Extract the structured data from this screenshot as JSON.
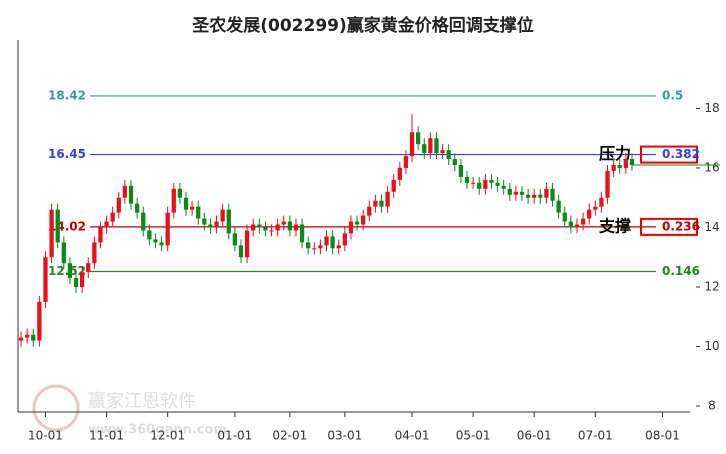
{
  "chart_data": {
    "type": "candlestick",
    "title": "圣农发展(002299)赢家黄金价格回调支撑位",
    "watermark": [
      "赢家江恩软件",
      "www.360gann.com"
    ],
    "up_color": "#e8101a",
    "down_color": "#0a8a1a",
    "ylim": [
      7.8,
      20.3
    ],
    "yticks": [
      8,
      10,
      12,
      14,
      16,
      18
    ],
    "categories": [
      null,
      null,
      null,
      null,
      "10-01",
      null,
      null,
      null,
      null,
      null,
      null,
      null,
      null,
      null,
      "11-01",
      null,
      null,
      null,
      null,
      null,
      null,
      null,
      null,
      null,
      "12-01",
      null,
      null,
      null,
      null,
      null,
      null,
      null,
      null,
      null,
      null,
      "01-01",
      null,
      null,
      null,
      null,
      null,
      null,
      null,
      null,
      "02-01",
      null,
      null,
      null,
      null,
      null,
      null,
      null,
      null,
      "03-01",
      null,
      null,
      null,
      null,
      null,
      null,
      null,
      null,
      null,
      null,
      "04-01",
      null,
      null,
      null,
      null,
      null,
      null,
      null,
      null,
      null,
      "05-01",
      null,
      null,
      null,
      null,
      null,
      null,
      null,
      null,
      null,
      "06-01",
      null,
      null,
      null,
      null,
      null,
      null,
      null,
      null,
      null,
      "07-01",
      null,
      null,
      null,
      null,
      null,
      null,
      null,
      null,
      null,
      null,
      "08-01",
      null,
      null,
      null,
      null
    ],
    "ohlc_order": [
      "open",
      "close",
      "high",
      "low"
    ],
    "candles": [
      [
        10.2,
        10.3,
        10.5,
        10.0
      ],
      [
        10.3,
        10.4,
        10.6,
        10.1
      ],
      [
        10.4,
        10.2,
        10.6,
        10.0
      ],
      [
        10.2,
        11.5,
        11.7,
        10.0
      ],
      [
        11.5,
        13.0,
        13.2,
        11.3
      ],
      [
        13.0,
        14.6,
        14.8,
        12.8
      ],
      [
        14.6,
        13.5,
        14.8,
        13.3
      ],
      [
        13.5,
        12.8,
        13.7,
        12.6
      ],
      [
        12.8,
        12.3,
        13.0,
        12.1
      ],
      [
        12.3,
        12.0,
        12.5,
        11.8
      ],
      [
        12.0,
        12.5,
        12.7,
        11.8
      ],
      [
        12.5,
        12.8,
        13.0,
        12.3
      ],
      [
        12.8,
        13.5,
        13.7,
        12.6
      ],
      [
        13.5,
        14.0,
        14.2,
        13.3
      ],
      [
        14.0,
        14.2,
        14.4,
        13.8
      ],
      [
        14.2,
        14.5,
        14.7,
        14.0
      ],
      [
        14.5,
        15.0,
        15.2,
        14.3
      ],
      [
        15.0,
        15.4,
        15.6,
        14.8
      ],
      [
        15.4,
        14.8,
        15.6,
        14.6
      ],
      [
        14.8,
        14.5,
        15.0,
        14.3
      ],
      [
        14.5,
        13.9,
        14.7,
        13.7
      ],
      [
        13.9,
        13.6,
        14.1,
        13.4
      ],
      [
        13.6,
        13.5,
        13.8,
        13.3
      ],
      [
        13.5,
        13.4,
        13.7,
        13.2
      ],
      [
        13.4,
        14.5,
        14.7,
        13.2
      ],
      [
        14.5,
        15.3,
        15.5,
        14.3
      ],
      [
        15.3,
        15.0,
        15.5,
        14.8
      ],
      [
        15.0,
        14.6,
        15.2,
        14.4
      ],
      [
        14.6,
        14.7,
        14.9,
        14.4
      ],
      [
        14.7,
        14.3,
        14.9,
        14.1
      ],
      [
        14.3,
        14.1,
        14.5,
        13.9
      ],
      [
        14.1,
        14.0,
        14.3,
        13.8
      ],
      [
        14.0,
        14.2,
        14.4,
        13.8
      ],
      [
        14.2,
        14.6,
        14.8,
        14.0
      ],
      [
        14.6,
        13.8,
        14.8,
        13.6
      ],
      [
        13.8,
        13.4,
        14.0,
        13.2
      ],
      [
        13.4,
        13.0,
        13.6,
        12.8
      ],
      [
        13.0,
        13.9,
        14.1,
        12.8
      ],
      [
        13.9,
        14.1,
        14.3,
        13.7
      ],
      [
        14.1,
        14.0,
        14.3,
        13.8
      ],
      [
        14.0,
        13.9,
        14.2,
        13.7
      ],
      [
        13.9,
        13.9,
        14.1,
        13.7
      ],
      [
        13.9,
        14.1,
        14.3,
        13.7
      ],
      [
        14.1,
        14.2,
        14.4,
        13.9
      ],
      [
        14.2,
        13.9,
        14.4,
        13.7
      ],
      [
        13.9,
        14.1,
        14.3,
        13.7
      ],
      [
        14.1,
        13.5,
        14.3,
        13.3
      ],
      [
        13.5,
        13.3,
        13.7,
        13.1
      ],
      [
        13.3,
        13.3,
        13.5,
        13.1
      ],
      [
        13.3,
        13.4,
        13.6,
        13.1
      ],
      [
        13.4,
        13.7,
        13.9,
        13.2
      ],
      [
        13.7,
        13.3,
        13.9,
        13.1
      ],
      [
        13.3,
        13.4,
        13.6,
        13.1
      ],
      [
        13.4,
        13.8,
        14.0,
        13.2
      ],
      [
        13.8,
        14.2,
        14.4,
        13.6
      ],
      [
        14.2,
        14.1,
        14.4,
        13.9
      ],
      [
        14.1,
        14.4,
        14.6,
        13.9
      ],
      [
        14.4,
        14.7,
        14.9,
        14.2
      ],
      [
        14.7,
        14.9,
        15.1,
        14.5
      ],
      [
        14.9,
        14.7,
        15.1,
        14.5
      ],
      [
        14.7,
        15.2,
        15.4,
        14.5
      ],
      [
        15.2,
        15.6,
        15.8,
        15.0
      ],
      [
        15.6,
        16.0,
        16.2,
        15.4
      ],
      [
        16.0,
        16.4,
        16.6,
        15.8
      ],
      [
        16.4,
        17.2,
        17.8,
        16.2
      ],
      [
        17.2,
        16.8,
        17.4,
        16.6
      ],
      [
        16.8,
        16.5,
        17.0,
        16.3
      ],
      [
        16.5,
        17.0,
        17.2,
        16.3
      ],
      [
        17.0,
        16.5,
        17.2,
        16.3
      ],
      [
        16.5,
        16.6,
        16.8,
        16.3
      ],
      [
        16.6,
        16.3,
        16.8,
        16.1
      ],
      [
        16.3,
        16.1,
        16.5,
        15.9
      ],
      [
        16.1,
        15.7,
        16.3,
        15.5
      ],
      [
        15.7,
        15.5,
        15.9,
        15.3
      ],
      [
        15.5,
        15.5,
        15.7,
        15.3
      ],
      [
        15.5,
        15.3,
        15.7,
        15.1
      ],
      [
        15.3,
        15.6,
        15.8,
        15.1
      ],
      [
        15.6,
        15.5,
        15.8,
        15.3
      ],
      [
        15.5,
        15.4,
        15.7,
        15.2
      ],
      [
        15.4,
        15.3,
        15.6,
        15.1
      ],
      [
        15.3,
        15.1,
        15.5,
        14.9
      ],
      [
        15.1,
        15.2,
        15.4,
        14.9
      ],
      [
        15.2,
        15.1,
        15.4,
        14.9
      ],
      [
        15.1,
        15.0,
        15.3,
        14.8
      ],
      [
        15.0,
        15.1,
        15.3,
        14.8
      ],
      [
        15.1,
        15.0,
        15.3,
        14.8
      ],
      [
        15.0,
        15.3,
        15.5,
        14.8
      ],
      [
        15.3,
        14.9,
        15.5,
        14.7
      ],
      [
        14.9,
        14.5,
        15.1,
        14.3
      ],
      [
        14.5,
        14.2,
        14.7,
        14.0
      ],
      [
        14.2,
        14.0,
        14.4,
        13.8
      ],
      [
        14.0,
        14.1,
        14.3,
        13.8
      ],
      [
        14.1,
        14.3,
        14.5,
        13.9
      ],
      [
        14.3,
        14.6,
        14.8,
        14.1
      ],
      [
        14.6,
        14.7,
        14.9,
        14.4
      ],
      [
        14.7,
        15.0,
        15.2,
        14.5
      ],
      [
        15.0,
        15.9,
        16.1,
        14.8
      ],
      [
        15.9,
        16.1,
        16.3,
        15.7
      ],
      [
        16.1,
        16.0,
        16.3,
        15.8
      ],
      [
        16.0,
        16.3,
        16.5,
        15.8
      ],
      [
        16.3,
        16.1,
        16.5,
        15.9
      ],
      null,
      null,
      null,
      null,
      null,
      null,
      null,
      null,
      null
    ],
    "levels": [
      {
        "price": 18.42,
        "ratio": 0.5,
        "color": "#3a9a9a",
        "boxed": false
      },
      {
        "price": 16.45,
        "ratio": 0.382,
        "color": "#3440e0",
        "boxed": true,
        "note": "压力"
      },
      {
        "price": 14.02,
        "ratio": 0.236,
        "color": "#c00000",
        "boxed": true,
        "note": "支撑"
      },
      {
        "price": 12.52,
        "ratio": 0.146,
        "color": "#1a8a1a",
        "boxed": false
      }
    ]
  }
}
